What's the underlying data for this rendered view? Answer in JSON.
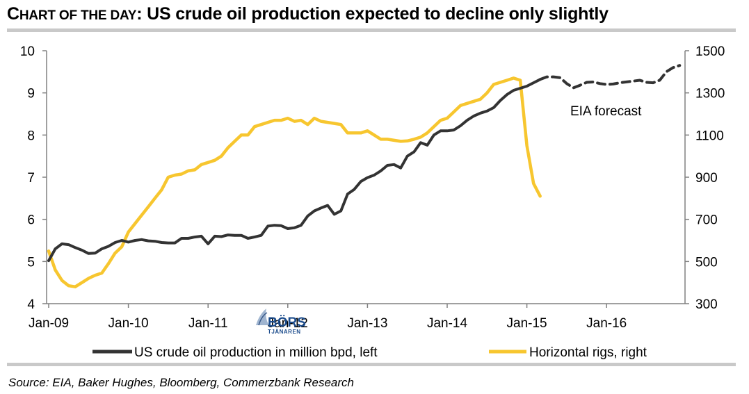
{
  "header": {
    "title_prefix_first": "C",
    "title_prefix_rest": "HART OF THE DAY",
    "title_colon": ":",
    "title_main": "US crude oil production expected to decline only slightly"
  },
  "footer": {
    "source": "Source: EIA, Baker Hughes, Bloomberg, Commerzbank Research"
  },
  "watermark": {
    "text_top": "BÖRS",
    "text_bottom": "TJÄNAREN"
  },
  "colors": {
    "production": "#333333",
    "rigs": "#f7c62f",
    "axis": "#808080"
  },
  "chart_data": {
    "type": "line",
    "title": "US crude oil production expected to decline only slightly",
    "x_unit": "months since Jan-2009",
    "xlim": [
      0,
      95
    ],
    "x_tick_labels": [
      "Jan-09",
      "Jan-10",
      "Jan-11",
      "Jan-12",
      "Jan-13",
      "Jan-14",
      "Jan-15",
      "Jan-16"
    ],
    "x_tick_values": [
      0,
      12,
      24,
      36,
      48,
      60,
      72,
      84
    ],
    "y_left": {
      "label": "million bpd",
      "lim": [
        4,
        10
      ],
      "ticks": [
        4,
        5,
        6,
        7,
        8,
        9,
        10
      ]
    },
    "y_right": {
      "label": "rigs",
      "lim": [
        300,
        1500
      ],
      "ticks": [
        300,
        500,
        700,
        900,
        1100,
        1300,
        1500
      ]
    },
    "annotation": "EIA forecast",
    "legend": [
      {
        "name": "US crude oil production in million bpd, left",
        "series": "production"
      },
      {
        "name": "Horizontal rigs, right",
        "series": "rigs"
      }
    ],
    "series": [
      {
        "name": "US crude oil production in million bpd, left",
        "axis": "left",
        "style": "solid",
        "x": [
          0,
          1,
          2,
          3,
          4,
          5,
          6,
          7,
          8,
          9,
          10,
          11,
          12,
          13,
          14,
          15,
          16,
          17,
          18,
          19,
          20,
          21,
          22,
          23,
          24,
          25,
          26,
          27,
          28,
          29,
          30,
          31,
          32,
          33,
          34,
          35,
          36,
          37,
          38,
          39,
          40,
          41,
          42,
          43,
          44,
          45,
          46,
          47,
          48,
          49,
          50,
          51,
          52,
          53,
          54,
          55,
          56,
          57,
          58,
          59,
          60,
          61,
          62,
          63,
          64,
          65,
          66,
          67,
          68,
          69,
          70,
          71,
          72,
          73,
          74
        ],
        "values": [
          5.02,
          5.3,
          5.42,
          5.4,
          5.33,
          5.27,
          5.19,
          5.2,
          5.3,
          5.36,
          5.45,
          5.5,
          5.46,
          5.5,
          5.52,
          5.49,
          5.48,
          5.45,
          5.44,
          5.44,
          5.55,
          5.55,
          5.58,
          5.6,
          5.42,
          5.6,
          5.59,
          5.63,
          5.62,
          5.62,
          5.55,
          5.58,
          5.62,
          5.84,
          5.86,
          5.85,
          5.78,
          5.8,
          5.86,
          6.08,
          6.2,
          6.27,
          6.33,
          6.12,
          6.2,
          6.6,
          6.71,
          6.9,
          6.99,
          7.05,
          7.15,
          7.28,
          7.3,
          7.22,
          7.5,
          7.6,
          7.82,
          7.76,
          8.0,
          8.1,
          8.1,
          8.12,
          8.22,
          8.35,
          8.45,
          8.52,
          8.57,
          8.65,
          8.82,
          8.96,
          9.06,
          9.11,
          9.16,
          9.24,
          9.32
        ]
      },
      {
        "name": "EIA forecast",
        "axis": "left",
        "style": "dashed",
        "x": [
          74,
          75,
          76,
          77,
          78,
          79,
          80,
          81,
          82,
          83,
          84,
          85,
          86,
          87,
          88,
          89,
          90,
          91,
          92,
          93,
          94,
          95
        ],
        "values": [
          9.32,
          9.38,
          9.38,
          9.36,
          9.22,
          9.12,
          9.18,
          9.25,
          9.26,
          9.22,
          9.2,
          9.21,
          9.24,
          9.26,
          9.28,
          9.3,
          9.25,
          9.24,
          9.3,
          9.5,
          9.6,
          9.65
        ]
      },
      {
        "name": "Horizontal rigs, right",
        "axis": "right",
        "style": "solid",
        "x": [
          0,
          1,
          2,
          3,
          4,
          5,
          6,
          7,
          8,
          9,
          10,
          11,
          12,
          13,
          14,
          15,
          16,
          17,
          18,
          19,
          20,
          21,
          22,
          23,
          24,
          25,
          26,
          27,
          28,
          29,
          30,
          31,
          32,
          33,
          34,
          35,
          36,
          37,
          38,
          39,
          40,
          41,
          42,
          43,
          44,
          45,
          46,
          47,
          48,
          49,
          50,
          51,
          52,
          53,
          54,
          55,
          56,
          57,
          58,
          59,
          60,
          61,
          62,
          63,
          64,
          65,
          66,
          67,
          68,
          69,
          70,
          71,
          72,
          73,
          74
        ],
        "values": [
          550,
          460,
          410,
          385,
          380,
          400,
          420,
          435,
          445,
          490,
          540,
          570,
          640,
          680,
          720,
          760,
          800,
          840,
          900,
          910,
          915,
          930,
          935,
          960,
          970,
          980,
          1000,
          1040,
          1070,
          1100,
          1100,
          1140,
          1150,
          1160,
          1170,
          1170,
          1180,
          1165,
          1170,
          1150,
          1180,
          1165,
          1160,
          1155,
          1150,
          1110,
          1110,
          1110,
          1120,
          1100,
          1080,
          1080,
          1075,
          1070,
          1072,
          1080,
          1090,
          1110,
          1140,
          1170,
          1180,
          1210,
          1240,
          1250,
          1260,
          1270,
          1300,
          1340,
          1350,
          1360,
          1370,
          1360,
          1050,
          870,
          810
        ]
      }
    ]
  }
}
